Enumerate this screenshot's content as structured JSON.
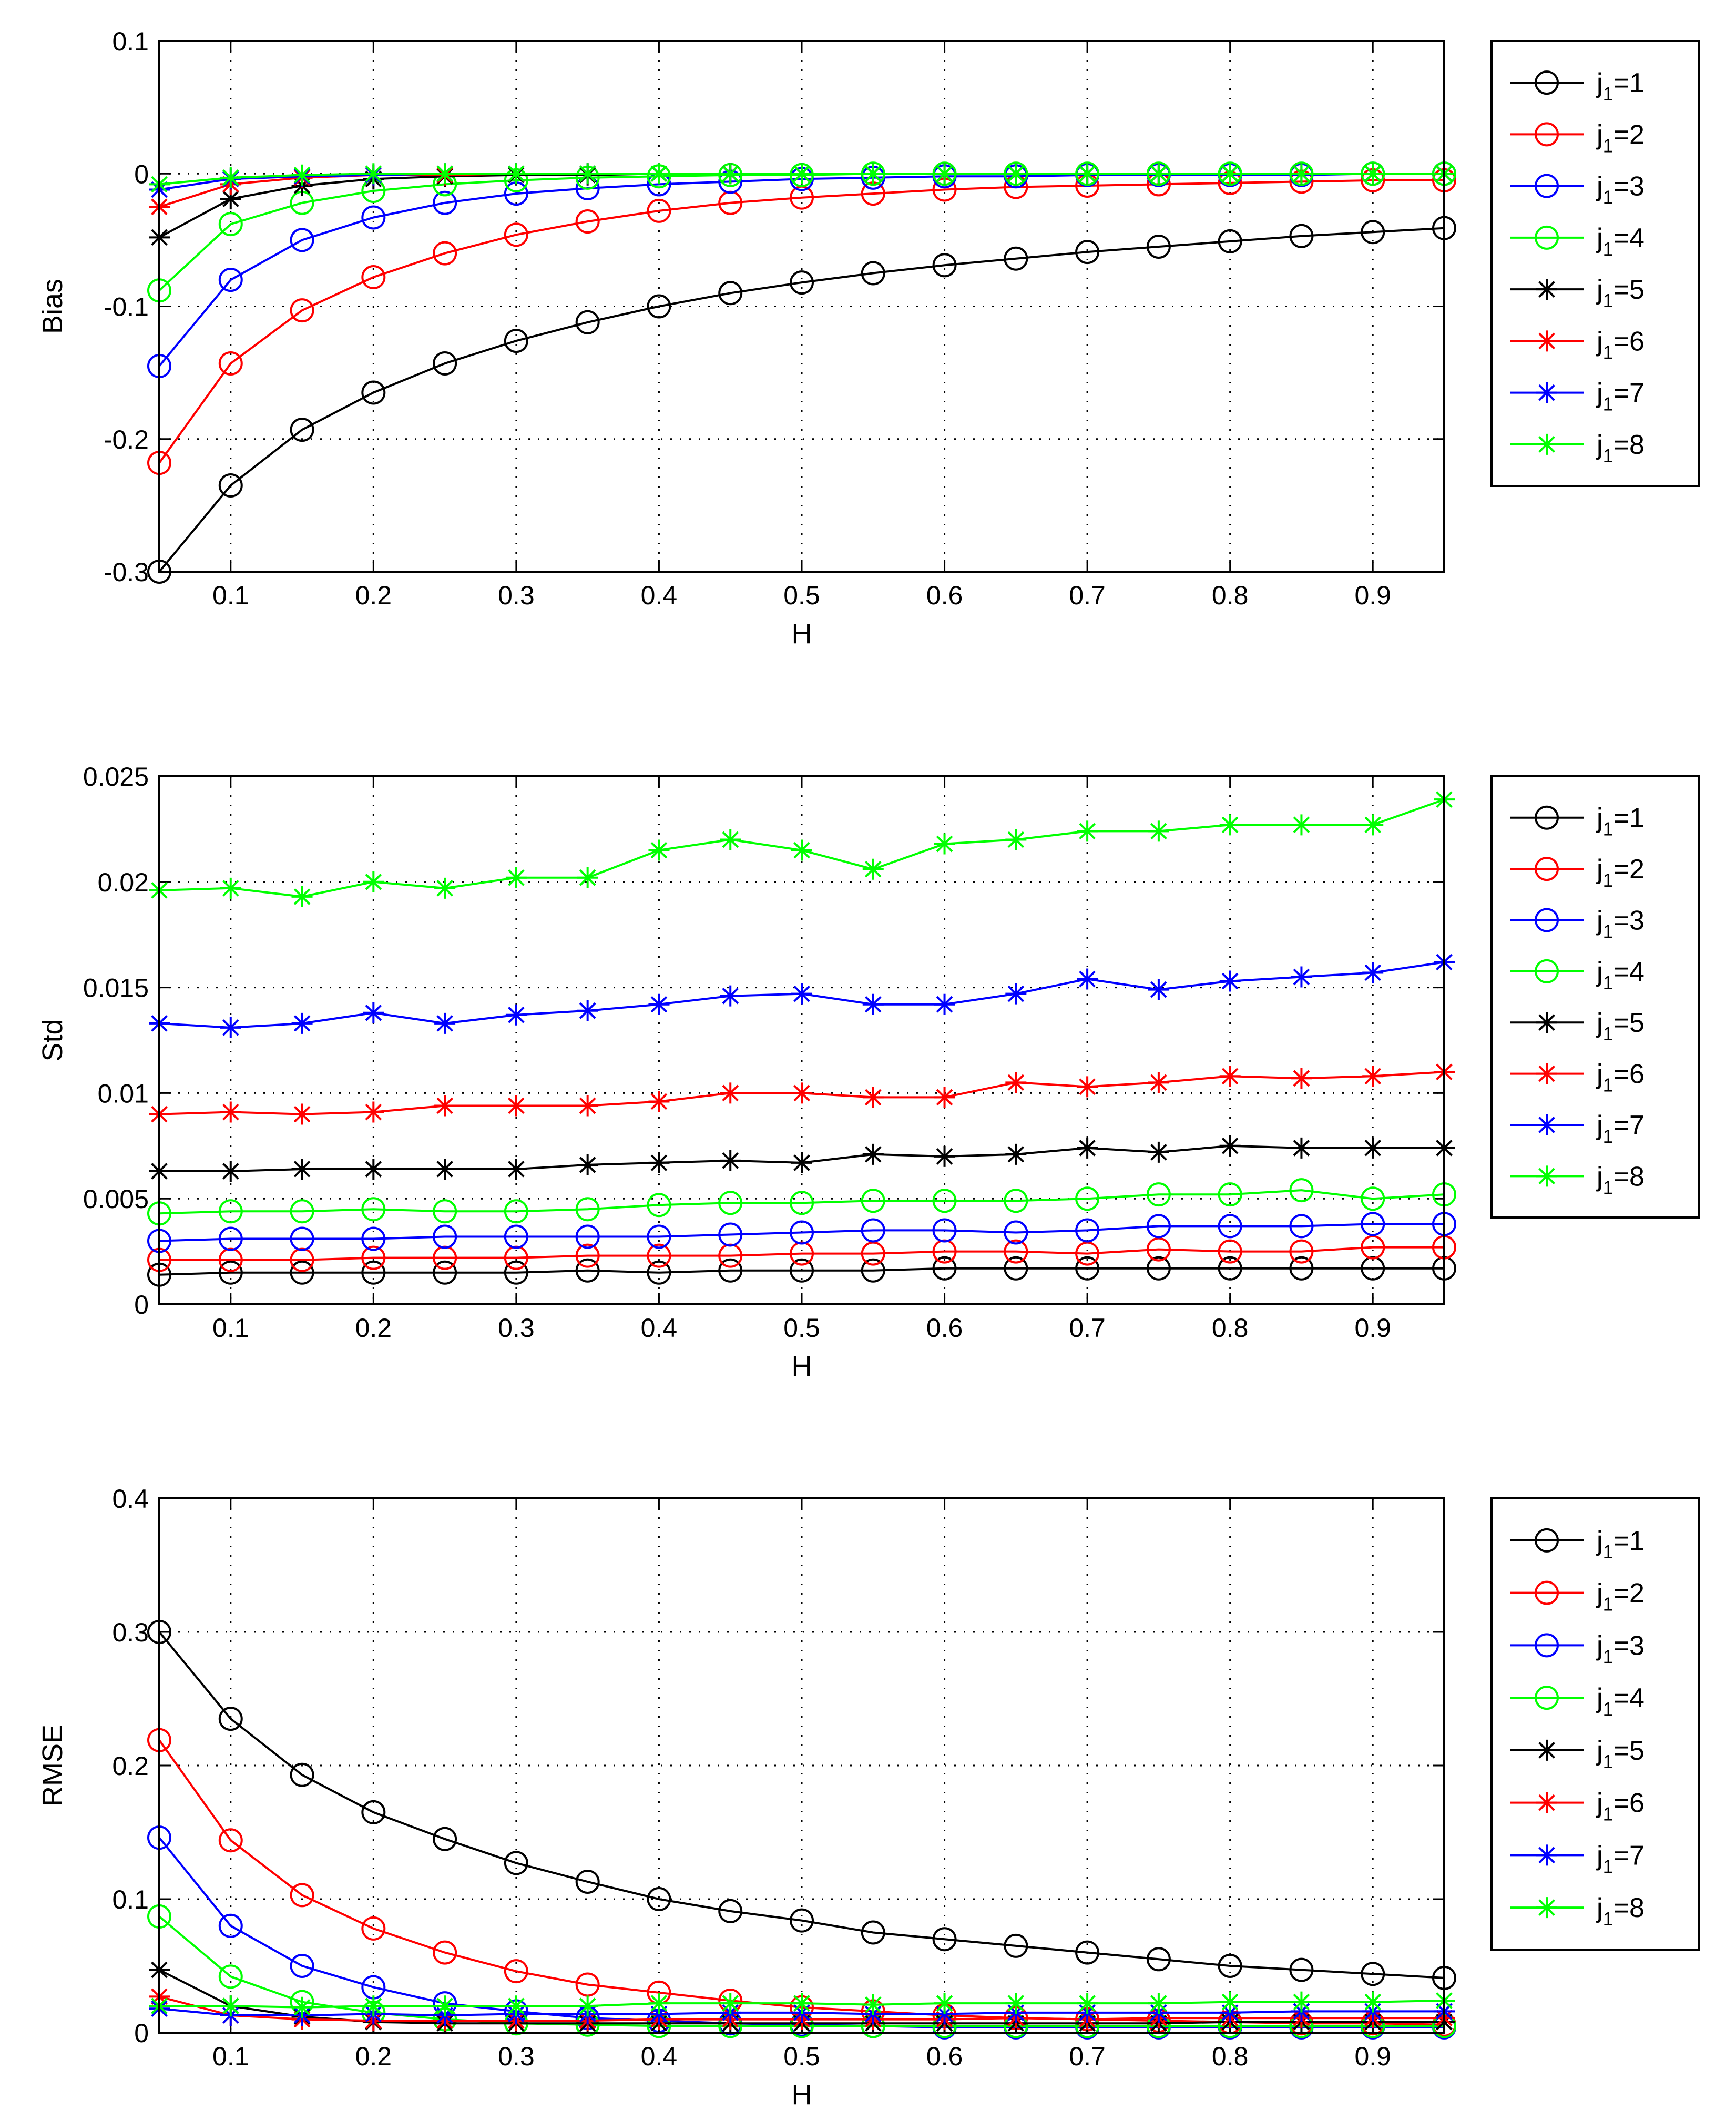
{
  "figure": {
    "x_ticks": [
      "0.1",
      "0.2",
      "0.3",
      "0.4",
      "0.5",
      "0.6",
      "0.7",
      "0.8",
      "0.9"
    ]
  },
  "legend_entries": [
    {
      "sub": "1",
      "val": "1",
      "color": "#000000",
      "marker": "circle"
    },
    {
      "sub": "1",
      "val": "2",
      "color": "#ff0000",
      "marker": "circle"
    },
    {
      "sub": "1",
      "val": "3",
      "color": "#0000ff",
      "marker": "circle"
    },
    {
      "sub": "1",
      "val": "4",
      "color": "#00ff00",
      "marker": "circle"
    },
    {
      "sub": "1",
      "val": "5",
      "color": "#000000",
      "marker": "star"
    },
    {
      "sub": "1",
      "val": "6",
      "color": "#ff0000",
      "marker": "star"
    },
    {
      "sub": "1",
      "val": "7",
      "color": "#0000ff",
      "marker": "star"
    },
    {
      "sub": "1",
      "val": "8",
      "color": "#00ff00",
      "marker": "star"
    }
  ],
  "chart_data": [
    {
      "type": "line",
      "title": "",
      "xlabel": "H",
      "ylabel": "Bias",
      "xlim": [
        0.05,
        0.95
      ],
      "ylim": [
        -0.3,
        0.1
      ],
      "x_ticks": [
        "0.1",
        "0.2",
        "0.3",
        "0.4",
        "0.5",
        "0.6",
        "0.7",
        "0.8",
        "0.9"
      ],
      "y_ticks": [
        "0.1",
        "0",
        "-0.1",
        "-0.2",
        "-0.3"
      ],
      "grid": true,
      "legend_position": "outside-right",
      "x": [
        0.05,
        0.1,
        0.15,
        0.2,
        0.25,
        0.3,
        0.35,
        0.4,
        0.45,
        0.5,
        0.55,
        0.6,
        0.65,
        0.7,
        0.75,
        0.8,
        0.85,
        0.9,
        0.95
      ],
      "series": [
        {
          "name": "j1=1",
          "color": "#000000",
          "marker": "circle",
          "values": [
            -0.3,
            -0.235,
            -0.193,
            -0.165,
            -0.143,
            -0.126,
            -0.112,
            -0.1,
            -0.09,
            -0.082,
            -0.075,
            -0.069,
            -0.064,
            -0.059,
            -0.055,
            -0.051,
            -0.047,
            -0.044,
            -0.041
          ]
        },
        {
          "name": "j1=2",
          "color": "#ff0000",
          "marker": "circle",
          "values": [
            -0.218,
            -0.143,
            -0.103,
            -0.078,
            -0.06,
            -0.046,
            -0.036,
            -0.028,
            -0.022,
            -0.018,
            -0.015,
            -0.012,
            -0.01,
            -0.009,
            -0.008,
            -0.007,
            -0.006,
            -0.005,
            -0.005
          ]
        },
        {
          "name": "j1=3",
          "color": "#0000ff",
          "marker": "circle",
          "values": [
            -0.145,
            -0.08,
            -0.05,
            -0.033,
            -0.022,
            -0.015,
            -0.011,
            -0.008,
            -0.006,
            -0.004,
            -0.003,
            -0.002,
            -0.002,
            -0.001,
            -0.001,
            -0.001,
            -0.001,
            0,
            0
          ]
        },
        {
          "name": "j1=4",
          "color": "#00ff00",
          "marker": "circle",
          "values": [
            -0.088,
            -0.038,
            -0.022,
            -0.013,
            -0.008,
            -0.005,
            -0.003,
            -0.002,
            -0.001,
            -0.001,
            0,
            0,
            0,
            0,
            0,
            0,
            0,
            0,
            0
          ]
        },
        {
          "name": "j1=5",
          "color": "#000000",
          "marker": "star",
          "values": [
            -0.048,
            -0.019,
            -0.009,
            -0.004,
            -0.002,
            -0.001,
            -0.001,
            0,
            0,
            0,
            0,
            0,
            0,
            0,
            0,
            0,
            0,
            0,
            0
          ]
        },
        {
          "name": "j1=6",
          "color": "#ff0000",
          "marker": "star",
          "values": [
            -0.025,
            -0.008,
            -0.003,
            -0.001,
            -0.001,
            0,
            0,
            0,
            0,
            0,
            0,
            0,
            0,
            0,
            0,
            0,
            0,
            0,
            0
          ]
        },
        {
          "name": "j1=7",
          "color": "#0000ff",
          "marker": "star",
          "values": [
            -0.012,
            -0.004,
            -0.002,
            -0.001,
            0,
            0,
            0,
            0,
            0,
            0,
            0,
            0,
            0,
            0,
            0,
            0,
            0,
            0,
            0
          ]
        },
        {
          "name": "j1=8",
          "color": "#00ff00",
          "marker": "star",
          "values": [
            -0.008,
            -0.003,
            -0.001,
            0,
            0,
            0,
            0,
            0,
            0,
            0,
            0,
            0,
            0,
            0,
            0,
            0,
            0,
            0,
            0
          ]
        }
      ]
    },
    {
      "type": "line",
      "title": "",
      "xlabel": "H",
      "ylabel": "Std",
      "xlim": [
        0.05,
        0.95
      ],
      "ylim": [
        0,
        0.025
      ],
      "x_ticks": [
        "0.1",
        "0.2",
        "0.3",
        "0.4",
        "0.5",
        "0.6",
        "0.7",
        "0.8",
        "0.9"
      ],
      "y_ticks": [
        "0.025",
        "0.02",
        "0.015",
        "0.01",
        "0.005",
        "0"
      ],
      "grid": true,
      "legend_position": "outside-right",
      "x": [
        0.05,
        0.1,
        0.15,
        0.2,
        0.25,
        0.3,
        0.35,
        0.4,
        0.45,
        0.5,
        0.55,
        0.6,
        0.65,
        0.7,
        0.75,
        0.8,
        0.85,
        0.9,
        0.95
      ],
      "series": [
        {
          "name": "j1=1",
          "color": "#000000",
          "marker": "circle",
          "values": [
            0.0014,
            0.0015,
            0.0015,
            0.0015,
            0.0015,
            0.0015,
            0.0016,
            0.0015,
            0.0016,
            0.0016,
            0.0016,
            0.0017,
            0.0017,
            0.0017,
            0.0017,
            0.0017,
            0.0017,
            0.0017,
            0.0017
          ]
        },
        {
          "name": "j1=2",
          "color": "#ff0000",
          "marker": "circle",
          "values": [
            0.0021,
            0.0021,
            0.0021,
            0.0022,
            0.0022,
            0.0022,
            0.0023,
            0.0023,
            0.0023,
            0.0024,
            0.0024,
            0.0025,
            0.0025,
            0.0024,
            0.0026,
            0.0025,
            0.0025,
            0.0027,
            0.0027
          ]
        },
        {
          "name": "j1=3",
          "color": "#0000ff",
          "marker": "circle",
          "values": [
            0.003,
            0.0031,
            0.0031,
            0.0031,
            0.0032,
            0.0032,
            0.0032,
            0.0032,
            0.0033,
            0.0034,
            0.0035,
            0.0035,
            0.0034,
            0.0035,
            0.0037,
            0.0037,
            0.0037,
            0.0038,
            0.0038
          ]
        },
        {
          "name": "j1=4",
          "color": "#00ff00",
          "marker": "circle",
          "values": [
            0.0043,
            0.0044,
            0.0044,
            0.0045,
            0.0044,
            0.0044,
            0.0045,
            0.0047,
            0.0048,
            0.0048,
            0.0049,
            0.0049,
            0.0049,
            0.005,
            0.0052,
            0.0052,
            0.0054,
            0.005,
            0.0052
          ]
        },
        {
          "name": "j1=5",
          "color": "#000000",
          "marker": "star",
          "values": [
            0.0063,
            0.0063,
            0.0064,
            0.0064,
            0.0064,
            0.0064,
            0.0066,
            0.0067,
            0.0068,
            0.0067,
            0.0071,
            0.007,
            0.0071,
            0.0074,
            0.0072,
            0.0075,
            0.0074,
            0.0074,
            0.0074
          ]
        },
        {
          "name": "j1=6",
          "color": "#ff0000",
          "marker": "star",
          "values": [
            0.009,
            0.0091,
            0.009,
            0.0091,
            0.0094,
            0.0094,
            0.0094,
            0.0096,
            0.01,
            0.01,
            0.0098,
            0.0098,
            0.0105,
            0.0103,
            0.0105,
            0.0108,
            0.0107,
            0.0108,
            0.011
          ]
        },
        {
          "name": "j1=7",
          "color": "#0000ff",
          "marker": "star",
          "values": [
            0.0133,
            0.0131,
            0.0133,
            0.0138,
            0.0133,
            0.0137,
            0.0139,
            0.0142,
            0.0146,
            0.0147,
            0.0142,
            0.0142,
            0.0147,
            0.0154,
            0.0149,
            0.0153,
            0.0155,
            0.0157,
            0.0162
          ]
        },
        {
          "name": "j1=8",
          "color": "#00ff00",
          "marker": "star",
          "values": [
            0.0196,
            0.0197,
            0.0193,
            0.02,
            0.0197,
            0.0202,
            0.0202,
            0.0215,
            0.022,
            0.0215,
            0.0206,
            0.0218,
            0.022,
            0.0224,
            0.0224,
            0.0227,
            0.0227,
            0.0227,
            0.0239
          ]
        }
      ]
    },
    {
      "type": "line",
      "title": "",
      "xlabel": "H",
      "ylabel": "RMSE",
      "xlim": [
        0.05,
        0.95
      ],
      "ylim": [
        0,
        0.4
      ],
      "x_ticks": [
        "0.1",
        "0.2",
        "0.3",
        "0.4",
        "0.5",
        "0.6",
        "0.7",
        "0.8",
        "0.9"
      ],
      "y_ticks": [
        "0.4",
        "0.3",
        "0.2",
        "0.1",
        "0"
      ],
      "grid": true,
      "legend_position": "outside-right",
      "x": [
        0.05,
        0.1,
        0.15,
        0.2,
        0.25,
        0.3,
        0.35,
        0.4,
        0.45,
        0.5,
        0.55,
        0.6,
        0.65,
        0.7,
        0.75,
        0.8,
        0.85,
        0.9,
        0.95
      ],
      "series": [
        {
          "name": "j1=1",
          "color": "#000000",
          "marker": "circle",
          "values": [
            0.3,
            0.235,
            0.193,
            0.165,
            0.145,
            0.127,
            0.113,
            0.1,
            0.091,
            0.084,
            0.075,
            0.07,
            0.065,
            0.06,
            0.055,
            0.05,
            0.047,
            0.044,
            0.041
          ]
        },
        {
          "name": "j1=2",
          "color": "#ff0000",
          "marker": "circle",
          "values": [
            0.219,
            0.144,
            0.103,
            0.078,
            0.06,
            0.046,
            0.036,
            0.03,
            0.024,
            0.019,
            0.016,
            0.013,
            0.011,
            0.01,
            0.009,
            0.008,
            0.007,
            0.007,
            0.006
          ]
        },
        {
          "name": "j1=3",
          "color": "#0000ff",
          "marker": "circle",
          "values": [
            0.146,
            0.08,
            0.05,
            0.034,
            0.022,
            0.016,
            0.011,
            0.009,
            0.007,
            0.006,
            0.005,
            0.004,
            0.004,
            0.004,
            0.004,
            0.004,
            0.004,
            0.004,
            0.004
          ]
        },
        {
          "name": "j1=4",
          "color": "#00ff00",
          "marker": "circle",
          "values": [
            0.087,
            0.042,
            0.023,
            0.015,
            0.01,
            0.007,
            0.006,
            0.005,
            0.005,
            0.005,
            0.005,
            0.005,
            0.005,
            0.005,
            0.005,
            0.005,
            0.005,
            0.005,
            0.005
          ]
        },
        {
          "name": "j1=5",
          "color": "#000000",
          "marker": "star",
          "values": [
            0.047,
            0.02,
            0.012,
            0.008,
            0.007,
            0.007,
            0.007,
            0.007,
            0.007,
            0.007,
            0.007,
            0.007,
            0.007,
            0.007,
            0.007,
            0.008,
            0.008,
            0.008,
            0.008
          ]
        },
        {
          "name": "j1=6",
          "color": "#ff0000",
          "marker": "star",
          "values": [
            0.027,
            0.013,
            0.01,
            0.009,
            0.009,
            0.009,
            0.009,
            0.01,
            0.01,
            0.01,
            0.01,
            0.01,
            0.011,
            0.01,
            0.011,
            0.011,
            0.011,
            0.011,
            0.011
          ]
        },
        {
          "name": "j1=7",
          "color": "#0000ff",
          "marker": "star",
          "values": [
            0.018,
            0.013,
            0.013,
            0.014,
            0.013,
            0.014,
            0.014,
            0.014,
            0.015,
            0.015,
            0.014,
            0.014,
            0.015,
            0.015,
            0.015,
            0.015,
            0.016,
            0.016,
            0.016
          ]
        },
        {
          "name": "j1=8",
          "color": "#00ff00",
          "marker": "star",
          "values": [
            0.02,
            0.02,
            0.019,
            0.02,
            0.02,
            0.02,
            0.02,
            0.022,
            0.022,
            0.022,
            0.021,
            0.022,
            0.022,
            0.022,
            0.022,
            0.023,
            0.023,
            0.023,
            0.024
          ]
        }
      ]
    }
  ]
}
